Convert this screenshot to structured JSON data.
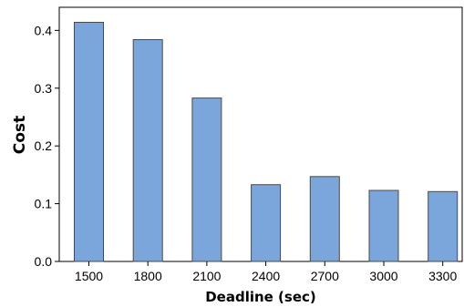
{
  "chart_data": {
    "type": "bar",
    "categories": [
      "1500",
      "1800",
      "2100",
      "2400",
      "2700",
      "3000",
      "3300"
    ],
    "values": [
      0.414,
      0.384,
      0.283,
      0.133,
      0.147,
      0.123,
      0.121
    ],
    "xlabel": "Deadline (sec)",
    "ylabel": "Cost",
    "ylim": [
      0,
      0.44
    ],
    "yticks": [
      "0.0",
      "0.1",
      "0.2",
      "0.3",
      "0.4"
    ],
    "grid": false,
    "bar_color": "#7ba6db",
    "bar_edge_color": "#4a4a4a"
  }
}
